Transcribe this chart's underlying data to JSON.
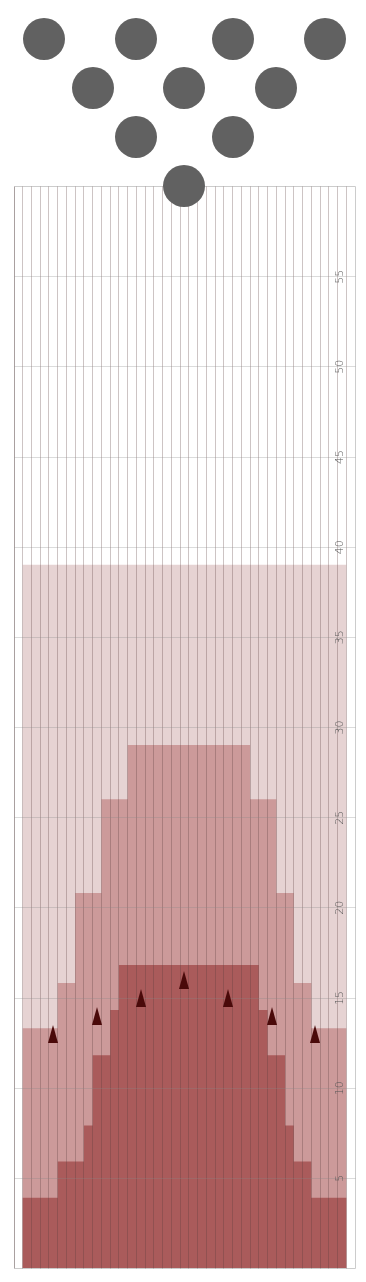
{
  "chart_data": {
    "type": "area",
    "categories": [
      null,
      null,
      null,
      null,
      null,
      null,
      null,
      null,
      null,
      null,
      null,
      null,
      null,
      null,
      null,
      null,
      null,
      null,
      null,
      null,
      null,
      null,
      null,
      null,
      null,
      null,
      null,
      null,
      null,
      null,
      null,
      null,
      null,
      null,
      null,
      null,
      null,
      null,
      null
    ],
    "series": [
      {
        "color": "#e6d3d3",
        "values": [
          0,
          39,
          39,
          39,
          39,
          39,
          39,
          39,
          39,
          39,
          39,
          39,
          39,
          39,
          39,
          39,
          39,
          39,
          39,
          39,
          39,
          39,
          39,
          39,
          39,
          39,
          39,
          39,
          39,
          39,
          39,
          39,
          39,
          39,
          39,
          39,
          39,
          39,
          0
        ]
      },
      {
        "color": "#cc9a9a",
        "values": [
          0,
          13.3,
          13.3,
          13.3,
          13.3,
          15.8,
          15.8,
          20.8,
          20.8,
          20.8,
          26,
          26,
          26,
          29,
          29,
          29,
          29,
          29,
          29,
          29,
          29,
          29,
          29,
          29,
          29,
          29,
          29,
          26,
          26,
          26,
          20.8,
          20.8,
          15.8,
          15.8,
          13.3,
          13.3,
          13.3,
          13.3,
          0
        ]
      },
      {
        "color": "#aa5b5b",
        "values": [
          0,
          3.9,
          3.9,
          3.9,
          3.9,
          5.9,
          5.9,
          5.9,
          7.9,
          11.8,
          11.8,
          14.3,
          16.8,
          16.8,
          16.8,
          16.8,
          16.8,
          16.8,
          16.8,
          16.8,
          16.8,
          16.8,
          16.8,
          16.8,
          16.8,
          16.8,
          16.8,
          16.8,
          14.3,
          11.8,
          11.8,
          7.9,
          5.9,
          5.9,
          3.9,
          3.9,
          3.9,
          3.9,
          0
        ]
      }
    ],
    "ylim": [
      0,
      60
    ],
    "yticks": [
      5,
      10,
      15,
      20,
      25,
      30,
      35,
      40,
      45,
      50,
      55
    ],
    "grid": true,
    "tick_labels": "y"
  }
}
